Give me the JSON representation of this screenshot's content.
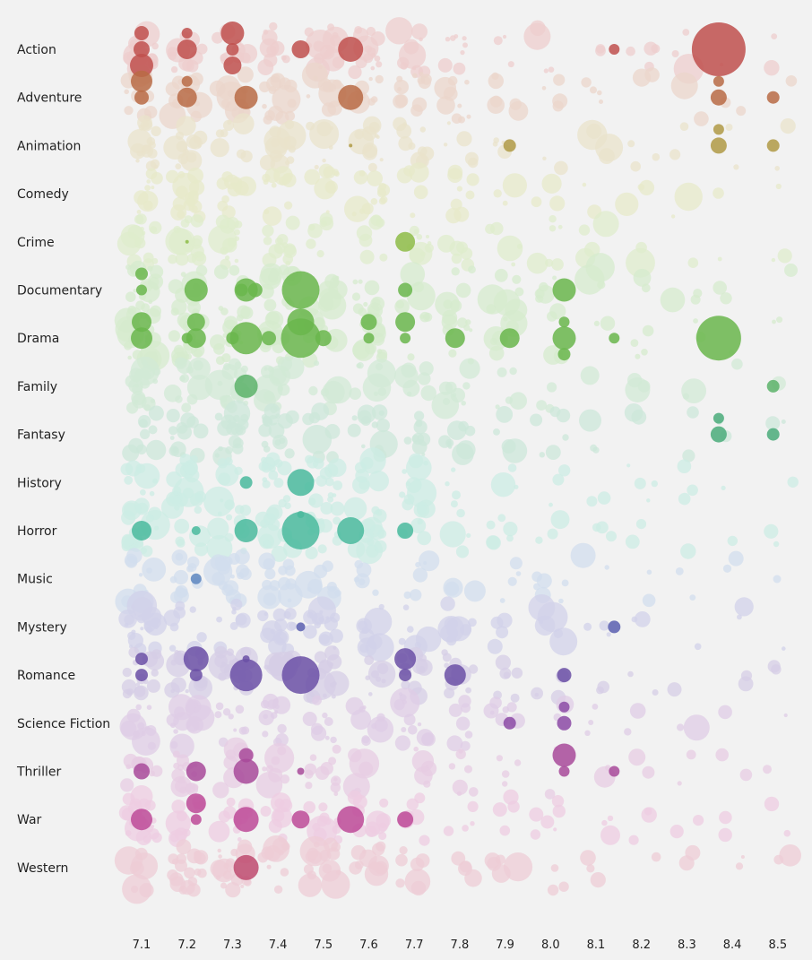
{
  "chart_data": {
    "type": "scatter",
    "title": "",
    "xlabel": "",
    "ylabel": "",
    "x_ticks": [
      "7.1",
      "7.2",
      "7.3",
      "7.4",
      "7.5",
      "7.6",
      "7.7",
      "7.8",
      "7.9",
      "8.0",
      "8.1",
      "8.2",
      "8.3",
      "8.4",
      "8.5"
    ],
    "xlim": [
      7.1,
      8.5
    ],
    "grid": false,
    "legend": "none",
    "genres": [
      "Action",
      "Adventure",
      "Animation",
      "Comedy",
      "Crime",
      "Documentary",
      "Drama",
      "Family",
      "Fantasy",
      "History",
      "Horror",
      "Music",
      "Mystery",
      "Romance",
      "Science Fiction",
      "Thriller",
      "War",
      "Western"
    ],
    "genre_colors": [
      "#c0504d",
      "#b86b45",
      "#b09a45",
      "#a9b040",
      "#8ebc48",
      "#6ab64c",
      "#6ab64c",
      "#5cb36a",
      "#4aab7a",
      "#4aba9e",
      "#4aba9e",
      "#5d86c0",
      "#5a5fb0",
      "#6b50a6",
      "#8c4aa6",
      "#a84a9a",
      "#bd4a98",
      "#be4a6e"
    ],
    "highlighted": [
      {
        "genre": "Action",
        "rating": 7.1,
        "size": 9
      },
      {
        "genre": "Action",
        "rating": 7.1,
        "size": 8
      },
      {
        "genre": "Action",
        "rating": 7.1,
        "size": 13
      },
      {
        "genre": "Action",
        "rating": 7.2,
        "size": 11
      },
      {
        "genre": "Action",
        "rating": 7.2,
        "size": 6
      },
      {
        "genre": "Action",
        "rating": 7.3,
        "size": 7
      },
      {
        "genre": "Action",
        "rating": 7.3,
        "size": 13
      },
      {
        "genre": "Action",
        "rating": 7.3,
        "size": 10
      },
      {
        "genre": "Action",
        "rating": 7.45,
        "size": 10
      },
      {
        "genre": "Action",
        "rating": 7.56,
        "size": 14
      },
      {
        "genre": "Action",
        "rating": 8.14,
        "size": 6
      },
      {
        "genre": "Action",
        "rating": 8.37,
        "size": 30
      },
      {
        "genre": "Adventure",
        "rating": 7.1,
        "size": 8
      },
      {
        "genre": "Adventure",
        "rating": 7.1,
        "size": 12
      },
      {
        "genre": "Adventure",
        "rating": 7.2,
        "size": 11
      },
      {
        "genre": "Adventure",
        "rating": 7.2,
        "size": 6
      },
      {
        "genre": "Adventure",
        "rating": 7.33,
        "size": 13
      },
      {
        "genre": "Adventure",
        "rating": 7.56,
        "size": 14
      },
      {
        "genre": "Adventure",
        "rating": 8.37,
        "size": 9
      },
      {
        "genre": "Adventure",
        "rating": 8.37,
        "size": 6
      },
      {
        "genre": "Adventure",
        "rating": 8.49,
        "size": 7
      },
      {
        "genre": "Animation",
        "rating": 7.91,
        "size": 7
      },
      {
        "genre": "Animation",
        "rating": 8.37,
        "size": 9
      },
      {
        "genre": "Animation",
        "rating": 8.37,
        "size": 6
      },
      {
        "genre": "Animation",
        "rating": 8.49,
        "size": 7
      },
      {
        "genre": "Animation",
        "rating": 7.56,
        "size": 2
      },
      {
        "genre": "Crime",
        "rating": 7.68,
        "size": 11
      },
      {
        "genre": "Crime",
        "rating": 7.2,
        "size": 2
      },
      {
        "genre": "Documentary",
        "rating": 7.1,
        "size": 6
      },
      {
        "genre": "Documentary",
        "rating": 7.1,
        "size": 7
      },
      {
        "genre": "Documentary",
        "rating": 7.22,
        "size": 13
      },
      {
        "genre": "Documentary",
        "rating": 7.32,
        "size": 7
      },
      {
        "genre": "Documentary",
        "rating": 7.35,
        "size": 8
      },
      {
        "genre": "Documentary",
        "rating": 7.33,
        "size": 13
      },
      {
        "genre": "Documentary",
        "rating": 7.45,
        "size": 21
      },
      {
        "genre": "Documentary",
        "rating": 7.68,
        "size": 8
      },
      {
        "genre": "Documentary",
        "rating": 8.03,
        "size": 13
      },
      {
        "genre": "Drama",
        "rating": 7.1,
        "size": 12
      },
      {
        "genre": "Drama",
        "rating": 7.1,
        "size": 11
      },
      {
        "genre": "Drama",
        "rating": 7.2,
        "size": 6
      },
      {
        "genre": "Drama",
        "rating": 7.22,
        "size": 11
      },
      {
        "genre": "Drama",
        "rating": 7.22,
        "size": 10
      },
      {
        "genre": "Drama",
        "rating": 7.3,
        "size": 7
      },
      {
        "genre": "Drama",
        "rating": 7.33,
        "size": 18
      },
      {
        "genre": "Drama",
        "rating": 7.38,
        "size": 8
      },
      {
        "genre": "Drama",
        "rating": 7.45,
        "size": 22
      },
      {
        "genre": "Drama",
        "rating": 7.45,
        "size": 15
      },
      {
        "genre": "Drama",
        "rating": 7.5,
        "size": 9
      },
      {
        "genre": "Drama",
        "rating": 7.6,
        "size": 6
      },
      {
        "genre": "Drama",
        "rating": 7.6,
        "size": 9
      },
      {
        "genre": "Drama",
        "rating": 7.68,
        "size": 6
      },
      {
        "genre": "Drama",
        "rating": 7.68,
        "size": 11
      },
      {
        "genre": "Drama",
        "rating": 7.79,
        "size": 11
      },
      {
        "genre": "Drama",
        "rating": 7.91,
        "size": 11
      },
      {
        "genre": "Drama",
        "rating": 8.03,
        "size": 13
      },
      {
        "genre": "Drama",
        "rating": 8.03,
        "size": 6
      },
      {
        "genre": "Drama",
        "rating": 8.03,
        "size": 7
      },
      {
        "genre": "Drama",
        "rating": 8.14,
        "size": 6
      },
      {
        "genre": "Drama",
        "rating": 8.37,
        "size": 25
      },
      {
        "genre": "Family",
        "rating": 7.33,
        "size": 13
      },
      {
        "genre": "Family",
        "rating": 8.49,
        "size": 7
      },
      {
        "genre": "Fantasy",
        "rating": 8.37,
        "size": 9
      },
      {
        "genre": "Fantasy",
        "rating": 8.37,
        "size": 6
      },
      {
        "genre": "Fantasy",
        "rating": 8.49,
        "size": 7
      },
      {
        "genre": "History",
        "rating": 7.33,
        "size": 7
      },
      {
        "genre": "History",
        "rating": 7.45,
        "size": 15
      },
      {
        "genre": "Horror",
        "rating": 7.1,
        "size": 11
      },
      {
        "genre": "Horror",
        "rating": 7.22,
        "size": 5
      },
      {
        "genre": "Horror",
        "rating": 7.33,
        "size": 13
      },
      {
        "genre": "Horror",
        "rating": 7.45,
        "size": 21
      },
      {
        "genre": "Horror",
        "rating": 7.56,
        "size": 15
      },
      {
        "genre": "Horror",
        "rating": 7.68,
        "size": 9
      },
      {
        "genre": "Horror",
        "rating": 7.45,
        "size": 4
      },
      {
        "genre": "Music",
        "rating": 7.22,
        "size": 6
      },
      {
        "genre": "Mystery",
        "rating": 7.45,
        "size": 5
      },
      {
        "genre": "Mystery",
        "rating": 8.14,
        "size": 7
      },
      {
        "genre": "Romance",
        "rating": 7.1,
        "size": 7
      },
      {
        "genre": "Romance",
        "rating": 7.1,
        "size": 7
      },
      {
        "genre": "Romance",
        "rating": 7.22,
        "size": 7
      },
      {
        "genre": "Romance",
        "rating": 7.22,
        "size": 14
      },
      {
        "genre": "Romance",
        "rating": 7.33,
        "size": 18
      },
      {
        "genre": "Romance",
        "rating": 7.33,
        "size": 4
      },
      {
        "genre": "Romance",
        "rating": 7.45,
        "size": 21
      },
      {
        "genre": "Romance",
        "rating": 7.68,
        "size": 7
      },
      {
        "genre": "Romance",
        "rating": 7.68,
        "size": 12
      },
      {
        "genre": "Romance",
        "rating": 7.79,
        "size": 12
      },
      {
        "genre": "Romance",
        "rating": 8.03,
        "size": 8
      },
      {
        "genre": "Science Fiction",
        "rating": 7.91,
        "size": 7
      },
      {
        "genre": "Science Fiction",
        "rating": 8.03,
        "size": 8
      },
      {
        "genre": "Science Fiction",
        "rating": 8.03,
        "size": 6
      },
      {
        "genre": "Thriller",
        "rating": 7.1,
        "size": 9
      },
      {
        "genre": "Thriller",
        "rating": 7.22,
        "size": 11
      },
      {
        "genre": "Thriller",
        "rating": 7.33,
        "size": 14
      },
      {
        "genre": "Thriller",
        "rating": 7.33,
        "size": 8
      },
      {
        "genre": "Thriller",
        "rating": 7.45,
        "size": 4
      },
      {
        "genre": "Thriller",
        "rating": 8.03,
        "size": 6
      },
      {
        "genre": "Thriller",
        "rating": 8.03,
        "size": 13
      },
      {
        "genre": "Thriller",
        "rating": 8.14,
        "size": 6
      },
      {
        "genre": "War",
        "rating": 7.1,
        "size": 12
      },
      {
        "genre": "War",
        "rating": 7.22,
        "size": 6
      },
      {
        "genre": "War",
        "rating": 7.22,
        "size": 11
      },
      {
        "genre": "War",
        "rating": 7.33,
        "size": 14
      },
      {
        "genre": "War",
        "rating": 7.45,
        "size": 10
      },
      {
        "genre": "War",
        "rating": 7.56,
        "size": 15
      },
      {
        "genre": "War",
        "rating": 7.68,
        "size": 9
      },
      {
        "genre": "Western",
        "rating": 7.33,
        "size": 14
      }
    ],
    "background_points_per_genre": 14
  }
}
